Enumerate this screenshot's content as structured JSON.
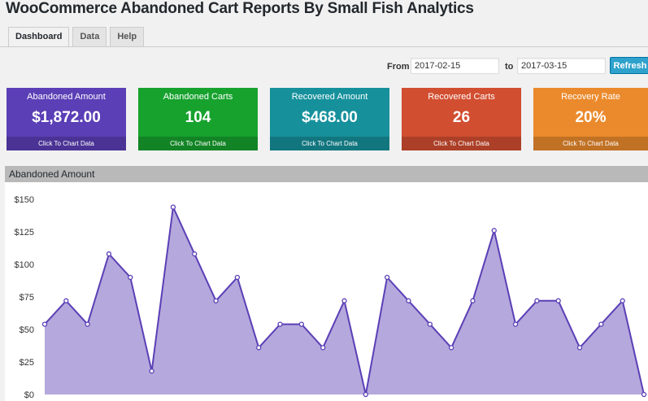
{
  "page": {
    "title": "WooCommerce Abandoned Cart Reports By Small Fish Analytics"
  },
  "tabs": [
    {
      "label": "Dashboard",
      "active": true
    },
    {
      "label": "Data",
      "active": false
    },
    {
      "label": "Help",
      "active": false
    }
  ],
  "date_range": {
    "from_label": "From",
    "from_value": "2017-02-15",
    "to_label": "to",
    "to_value": "2017-03-15",
    "refresh_label": "Refresh"
  },
  "cards": [
    {
      "title": "Abandoned Amount",
      "value": "$1,872.00",
      "footer": "Click To Chart Data",
      "color": "#5b3fb6"
    },
    {
      "title": "Abandoned Carts",
      "value": "104",
      "footer": "Click To Chart Data",
      "color": "#17a22e"
    },
    {
      "title": "Recovered Amount",
      "value": "$468.00",
      "footer": "Click To Chart Data",
      "color": "#16919c"
    },
    {
      "title": "Recovered Carts",
      "value": "26",
      "footer": "Click To Chart Data",
      "color": "#d24e30"
    },
    {
      "title": "Recovery Rate",
      "value": "20%",
      "footer": "Click To Chart Data",
      "color": "#eb8a2c"
    }
  ],
  "chart_panel": {
    "title": "Abandoned Amount"
  },
  "chart_data": {
    "type": "area",
    "title": "Abandoned Amount",
    "ylim": [
      0,
      150
    ],
    "ytick_labels": [
      "$0",
      "$25",
      "$50",
      "$75",
      "$100",
      "$125",
      "$150"
    ],
    "ytick_values": [
      0,
      25,
      50,
      75,
      100,
      125,
      150
    ],
    "grid": false,
    "fill_color": "#b5a8dc",
    "line_color": "#5b3fb6",
    "series": [
      {
        "values": [
          54,
          72,
          54,
          108,
          90,
          18,
          144,
          108,
          72,
          90,
          36,
          54,
          54,
          36,
          72,
          0,
          90,
          72,
          54,
          36,
          72,
          126,
          54,
          72,
          72,
          36,
          54,
          72,
          0
        ]
      }
    ]
  }
}
